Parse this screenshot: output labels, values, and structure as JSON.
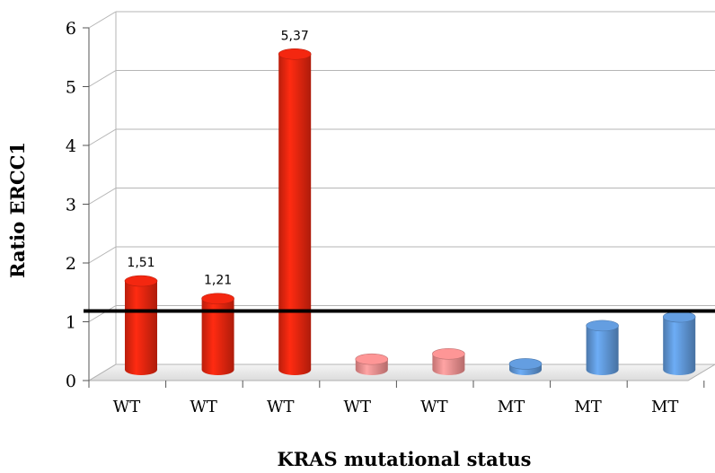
{
  "chart_data": {
    "type": "bar",
    "title": "",
    "xlabel": "KRAS mutational status",
    "ylabel": "Ratio ERCC1",
    "ylim": [
      0,
      6
    ],
    "yticks": [
      "0",
      "1",
      "2",
      "3",
      "4",
      "5",
      "6"
    ],
    "categories": [
      "WT",
      "WT",
      "WT",
      "WT",
      "WT",
      "MT",
      "MT",
      "MT"
    ],
    "values": [
      1.51,
      1.21,
      5.37,
      0.18,
      0.27,
      0.1,
      0.75,
      0.9
    ],
    "data_labels": [
      "1,51",
      "1,21",
      "5,37",
      "",
      "",
      "",
      "",
      ""
    ],
    "bar_colors": [
      "#e8250f",
      "#e8250f",
      "#e8250f",
      "#f28f8f",
      "#f28f8f",
      "#5f96d6",
      "#5f96d6",
      "#5f96d6"
    ],
    "reference_line": {
      "value": 1,
      "color": "#000000"
    },
    "grid": true,
    "legend": "none"
  }
}
